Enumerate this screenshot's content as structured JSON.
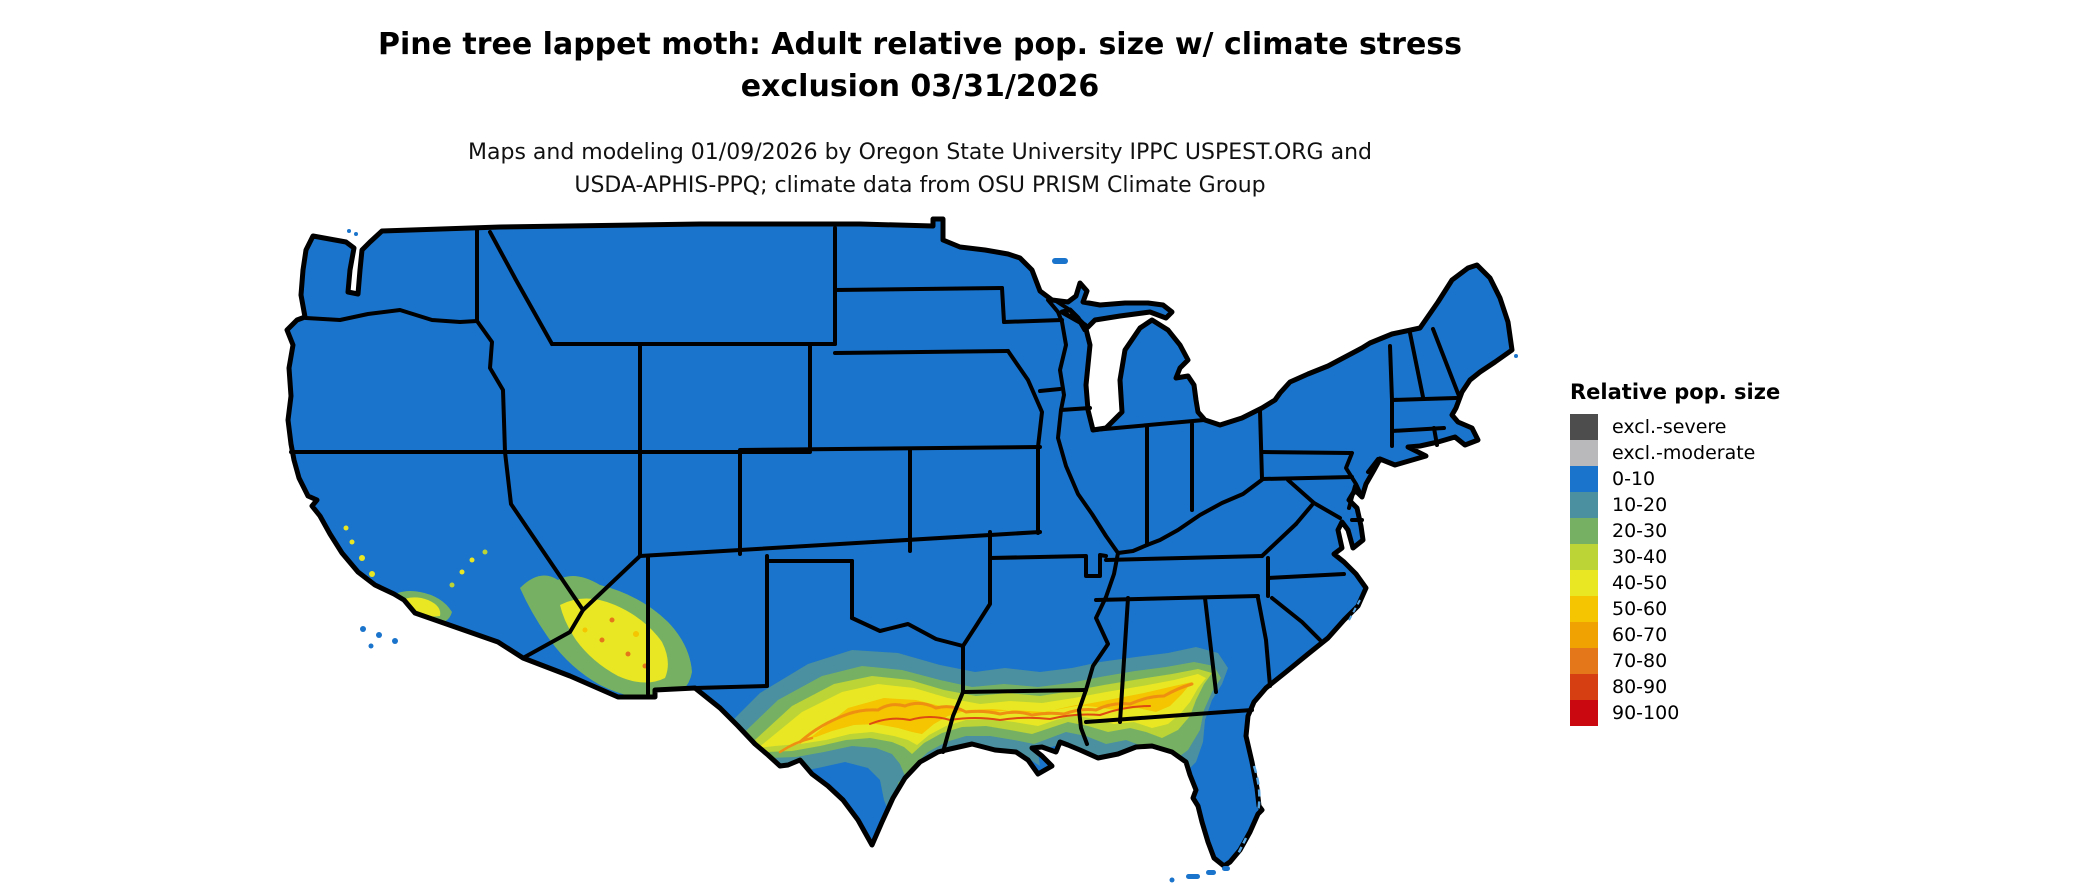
{
  "header": {
    "title_line1": "Pine tree lappet moth: Adult relative pop. size w/ climate stress",
    "title_line2": "exclusion 03/31/2026",
    "subtitle_line1": "Maps and modeling 01/09/2026 by Oregon State University IPPC USPEST.ORG and",
    "subtitle_line2": "USDA-APHIS-PPQ; climate data from OSU PRISM Climate Group"
  },
  "legend": {
    "title": "Relative pop. size",
    "items": [
      {
        "label": "excl.-severe",
        "color": "#4d4d4d"
      },
      {
        "label": "excl.-moderate",
        "color": "#b9b9bb"
      },
      {
        "label": "0-10",
        "color": "#1b74cb"
      },
      {
        "label": "10-20",
        "color": "#4a90a0"
      },
      {
        "label": "20-30",
        "color": "#76b163"
      },
      {
        "label": "30-40",
        "color": "#bcd435"
      },
      {
        "label": "40-50",
        "color": "#e9e723"
      },
      {
        "label": "50-60",
        "color": "#f4c500"
      },
      {
        "label": "60-70",
        "color": "#f0a202"
      },
      {
        "label": "70-80",
        "color": "#e5771b"
      },
      {
        "label": "80-90",
        "color": "#d63f12"
      },
      {
        "label": "90-100",
        "color": "#c9080f"
      }
    ]
  },
  "map": {
    "region": "Contiguous United States",
    "base_fill": "#1b74cb",
    "border_color": "#000000",
    "background": "#ffffff"
  }
}
